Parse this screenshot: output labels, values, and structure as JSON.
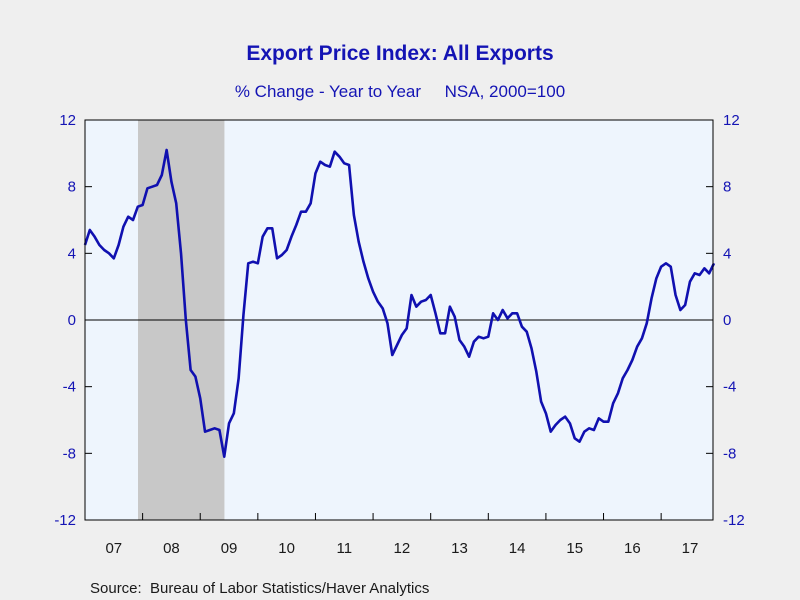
{
  "chart_data": {
    "type": "line",
    "title": "Export Price Index: All Exports",
    "subtitle": "% Change - Year to Year     NSA, 2000=100",
    "source": "Source:  Bureau of Labor Statistics/Haver Analytics",
    "ylim": [
      -12,
      12
    ],
    "yticks": [
      12,
      8,
      4,
      0,
      -4,
      -8,
      -12
    ],
    "x_start": 2007.0,
    "x_end": 2017.9,
    "xticks": [
      {
        "label": "07",
        "year": 2007
      },
      {
        "label": "08",
        "year": 2008
      },
      {
        "label": "09",
        "year": 2009
      },
      {
        "label": "10",
        "year": 2010
      },
      {
        "label": "11",
        "year": 2011
      },
      {
        "label": "12",
        "year": 2012
      },
      {
        "label": "13",
        "year": 2013
      },
      {
        "label": "14",
        "year": 2014
      },
      {
        "label": "15",
        "year": 2015
      },
      {
        "label": "16",
        "year": 2016
      },
      {
        "label": "17",
        "year": 2017
      }
    ],
    "recession": {
      "start": 2007.92,
      "end": 2009.42
    },
    "colors": {
      "line": "#1010b0",
      "plot_bg": "#eef5fd",
      "recession": "#c8c8c8",
      "text": "#1414b4"
    },
    "series": [
      {
        "values": [
          4.5,
          5.4,
          5.0,
          4.5,
          4.2,
          4.0,
          3.7,
          4.5,
          5.6,
          6.2,
          6.0,
          6.8,
          6.9,
          7.9,
          8.0,
          8.1,
          8.7,
          10.2,
          8.3,
          7.0,
          4.0,
          0.0,
          -3.0,
          -3.4,
          -4.7,
          -6.7,
          -6.6,
          -6.5,
          -6.6,
          -8.2,
          -6.2,
          -5.6,
          -3.5,
          0.3,
          3.4,
          3.5,
          3.4,
          5.0,
          5.5,
          5.5,
          3.7,
          3.9,
          4.2,
          5.0,
          5.7,
          6.5,
          6.5,
          7.0,
          8.8,
          9.5,
          9.3,
          9.2,
          10.1,
          9.8,
          9.4,
          9.3,
          6.3,
          4.7,
          3.5,
          2.5,
          1.7,
          1.1,
          0.7,
          -0.2,
          -2.1,
          -1.5,
          -0.9,
          -0.5,
          1.5,
          0.8,
          1.1,
          1.2,
          1.5,
          0.4,
          -0.8,
          -0.8,
          0.8,
          0.2,
          -1.2,
          -1.6,
          -2.2,
          -1.3,
          -1.0,
          -1.1,
          -1.0,
          0.4,
          0.0,
          0.6,
          0.1,
          0.4,
          0.4,
          -0.4,
          -0.7,
          -1.7,
          -3.1,
          -4.9,
          -5.6,
          -6.7,
          -6.3,
          -6.0,
          -5.8,
          -6.2,
          -7.1,
          -7.3,
          -6.7,
          -6.5,
          -6.6,
          -5.9,
          -6.1,
          -6.1,
          -5.0,
          -4.4,
          -3.5,
          -3.0,
          -2.4,
          -1.6,
          -1.1,
          -0.2,
          1.3,
          2.5,
          3.2,
          3.4,
          3.2,
          1.5,
          0.6,
          0.9,
          2.3,
          2.8,
          2.7,
          3.1,
          2.8,
          3.4
        ]
      }
    ]
  }
}
